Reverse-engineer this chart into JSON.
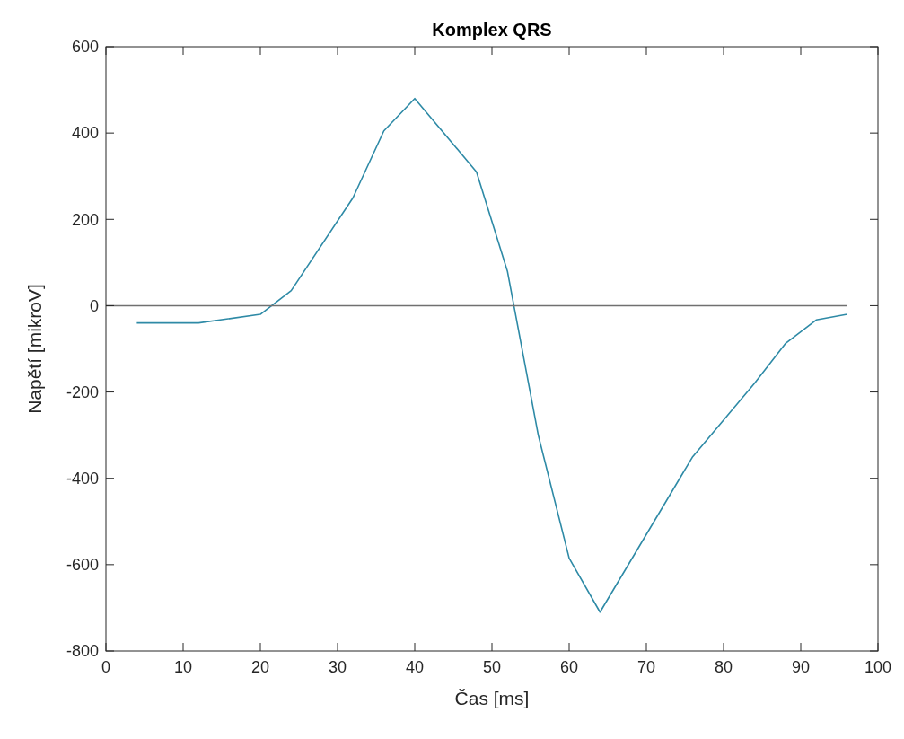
{
  "chart_data": {
    "type": "line",
    "title": "Komplex QRS",
    "xlabel": "Čas [ms]",
    "ylabel": "Napětí [mikroV]",
    "xlim": [
      0,
      100
    ],
    "xticks": [
      0,
      10,
      20,
      30,
      40,
      50,
      60,
      70,
      80,
      90,
      100
    ],
    "ylim": [
      -800,
      600
    ],
    "yticks": [
      -800,
      -600,
      -400,
      -200,
      0,
      200,
      400,
      600
    ],
    "grid": false,
    "series": [
      {
        "color": "#2e8aa6",
        "x": [
          4,
          12,
          20,
          24,
          32,
          36,
          40,
          48,
          52,
          56,
          60,
          64,
          76,
          84,
          88,
          92,
          96
        ],
        "values": [
          -40,
          -40,
          -20,
          35,
          250,
          405,
          480,
          310,
          80,
          -300,
          -585,
          -710,
          -350,
          -180,
          -88,
          -33,
          -20
        ]
      },
      {
        "color": "#707070",
        "x": [
          0,
          96
        ],
        "values": [
          0,
          0
        ]
      }
    ]
  }
}
